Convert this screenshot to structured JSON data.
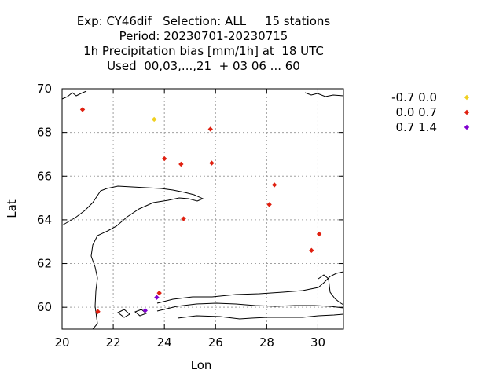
{
  "title_lines": [
    "Exp: CY46dif   Selection: ALL     15 stations",
    "Period: 20230701-20230715",
    "1h Precipitation bias [mm/1h] at  18 UTC",
    "Used  00,03,...,21  + 03 06 ... 60"
  ],
  "chart_data": {
    "type": "scatter",
    "xlabel": "Lon",
    "ylabel": "Lat",
    "xlim": [
      20,
      31
    ],
    "ylim": [
      59,
      70
    ],
    "xticks": [
      20,
      22,
      24,
      26,
      28,
      30
    ],
    "yticks": [
      60,
      62,
      64,
      66,
      68,
      70
    ],
    "grid": true,
    "legend_position": "right",
    "series": [
      {
        "name": "-0.7 0.0",
        "color": "#f0d020",
        "points": [
          [
            23.6,
            68.6
          ]
        ]
      },
      {
        "name": "0.0 0.7",
        "color": "#e02010",
        "points": [
          [
            20.8,
            69.05
          ],
          [
            24.0,
            66.8
          ],
          [
            24.65,
            66.55
          ],
          [
            25.8,
            68.15
          ],
          [
            25.85,
            66.6
          ],
          [
            24.75,
            64.05
          ],
          [
            28.3,
            65.6
          ],
          [
            28.1,
            64.7
          ],
          [
            30.05,
            63.35
          ],
          [
            29.75,
            62.6
          ],
          [
            23.8,
            60.65
          ],
          [
            21.4,
            59.8
          ]
        ]
      },
      {
        "name": "0.7 1.4",
        "color": "#8000d0",
        "points": [
          [
            23.7,
            60.45
          ],
          [
            23.25,
            59.85
          ]
        ]
      }
    ]
  }
}
